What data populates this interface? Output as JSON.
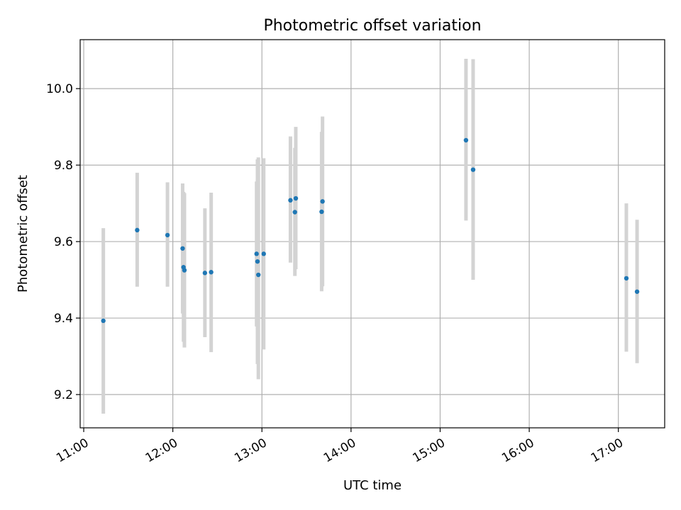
{
  "chart_data": {
    "type": "scatter",
    "title": "Photometric offset variation",
    "xlabel": "UTC time",
    "ylabel": "Photometric offset",
    "x_unit": "hours UTC",
    "xlim": [
      10.96,
      17.52
    ],
    "ylim": [
      9.113,
      10.128
    ],
    "x_ticks": [
      {
        "value": 11,
        "label": "11:00"
      },
      {
        "value": 12,
        "label": "12:00"
      },
      {
        "value": 13,
        "label": "13:00"
      },
      {
        "value": 14,
        "label": "14:00"
      },
      {
        "value": 15,
        "label": "15:00"
      },
      {
        "value": 16,
        "label": "16:00"
      },
      {
        "value": 17,
        "label": "17:00"
      }
    ],
    "y_ticks": [
      {
        "value": 9.2,
        "label": "9.2"
      },
      {
        "value": 9.4,
        "label": "9.4"
      },
      {
        "value": 9.6,
        "label": "9.6"
      },
      {
        "value": 9.8,
        "label": "9.8"
      },
      {
        "value": 10.0,
        "label": "10.0"
      }
    ],
    "grid": true,
    "point_color": "#1f77b4",
    "errorbar_color": "#d3d3d3",
    "points": [
      {
        "x": 11.22,
        "y": 9.393,
        "ylow": 9.15,
        "yhigh": 9.635
      },
      {
        "x": 11.6,
        "y": 9.63,
        "ylow": 9.482,
        "yhigh": 9.78
      },
      {
        "x": 11.94,
        "y": 9.617,
        "ylow": 9.482,
        "yhigh": 9.755
      },
      {
        "x": 12.11,
        "y": 9.582,
        "ylow": 9.412,
        "yhigh": 9.752
      },
      {
        "x": 12.12,
        "y": 9.533,
        "ylow": 9.338,
        "yhigh": 9.73
      },
      {
        "x": 12.13,
        "y": 9.525,
        "ylow": 9.323,
        "yhigh": 9.727
      },
      {
        "x": 12.36,
        "y": 9.518,
        "ylow": 9.35,
        "yhigh": 9.687
      },
      {
        "x": 12.43,
        "y": 9.52,
        "ylow": 9.311,
        "yhigh": 9.728
      },
      {
        "x": 12.94,
        "y": 9.568,
        "ylow": 9.378,
        "yhigh": 9.757
      },
      {
        "x": 12.95,
        "y": 9.548,
        "ylow": 9.28,
        "yhigh": 9.815
      },
      {
        "x": 12.96,
        "y": 9.513,
        "ylow": 9.24,
        "yhigh": 9.82
      },
      {
        "x": 13.02,
        "y": 9.568,
        "ylow": 9.318,
        "yhigh": 9.818
      },
      {
        "x": 13.32,
        "y": 9.708,
        "ylow": 9.545,
        "yhigh": 9.875
      },
      {
        "x": 13.37,
        "y": 9.677,
        "ylow": 9.51,
        "yhigh": 9.845
      },
      {
        "x": 13.38,
        "y": 9.713,
        "ylow": 9.528,
        "yhigh": 9.9
      },
      {
        "x": 13.67,
        "y": 9.678,
        "ylow": 9.47,
        "yhigh": 9.887
      },
      {
        "x": 13.68,
        "y": 9.705,
        "ylow": 9.483,
        "yhigh": 9.927
      },
      {
        "x": 15.29,
        "y": 9.865,
        "ylow": 9.655,
        "yhigh": 10.078
      },
      {
        "x": 15.37,
        "y": 9.788,
        "ylow": 9.5,
        "yhigh": 10.077
      },
      {
        "x": 17.09,
        "y": 9.504,
        "ylow": 9.312,
        "yhigh": 9.7
      },
      {
        "x": 17.21,
        "y": 9.469,
        "ylow": 9.282,
        "yhigh": 9.657
      }
    ]
  }
}
